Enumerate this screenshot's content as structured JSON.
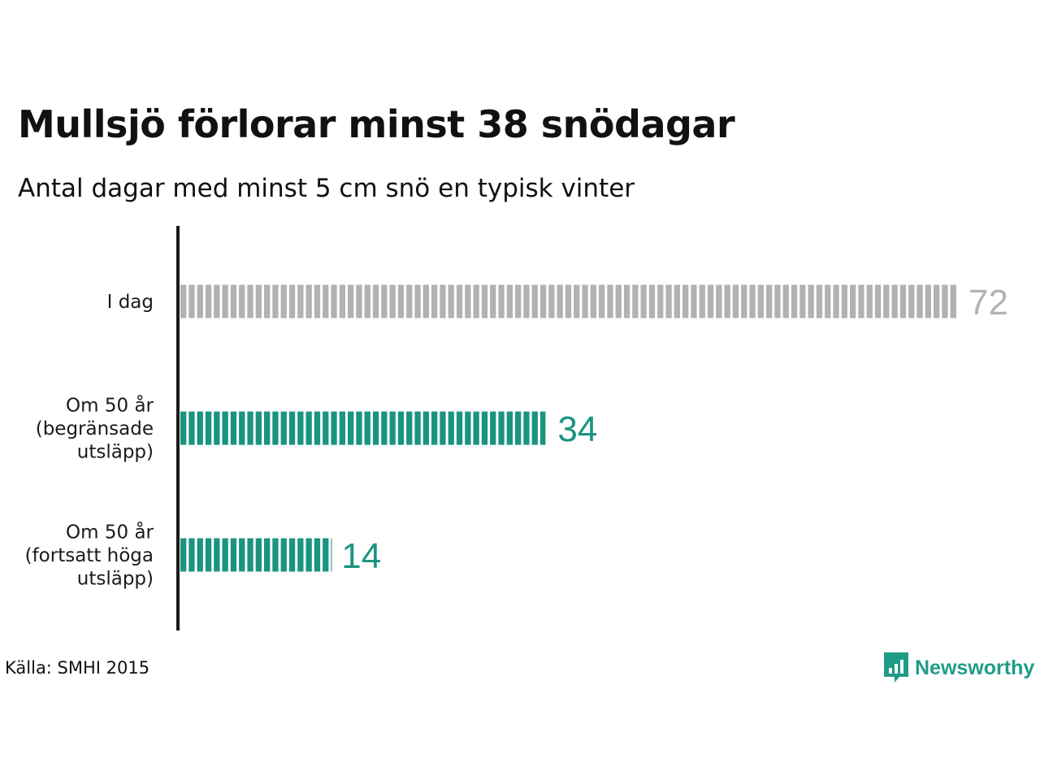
{
  "header": {
    "title": "Mullsjö förlorar minst 38 snödagar",
    "subtitle": "Antal dagar med minst 5 cm snö en typisk vinter"
  },
  "chart_data": {
    "type": "bar",
    "orientation": "horizontal",
    "categories": [
      [
        "I dag"
      ],
      [
        "Om 50 år",
        "(begränsade",
        "utsläpp)"
      ],
      [
        "Om 50 år",
        "(fortsatt höga",
        "utsläpp)"
      ]
    ],
    "values": [
      72,
      34,
      14
    ],
    "value_labels": [
      "72",
      "34",
      "14"
    ],
    "colors": [
      "#b2b2b2",
      "#1a9481",
      "#1a9481"
    ],
    "label_colors": [
      "#b2b2b2",
      "#1a9481",
      "#1a9481"
    ],
    "xlim": [
      0,
      72
    ],
    "grid": false,
    "legend": "none"
  },
  "footer": {
    "source": "Källa: SMHI 2015",
    "brand": "Newsworthy",
    "brand_icon": "newsworthy-logo-icon",
    "brand_color": "#1f9c88"
  }
}
